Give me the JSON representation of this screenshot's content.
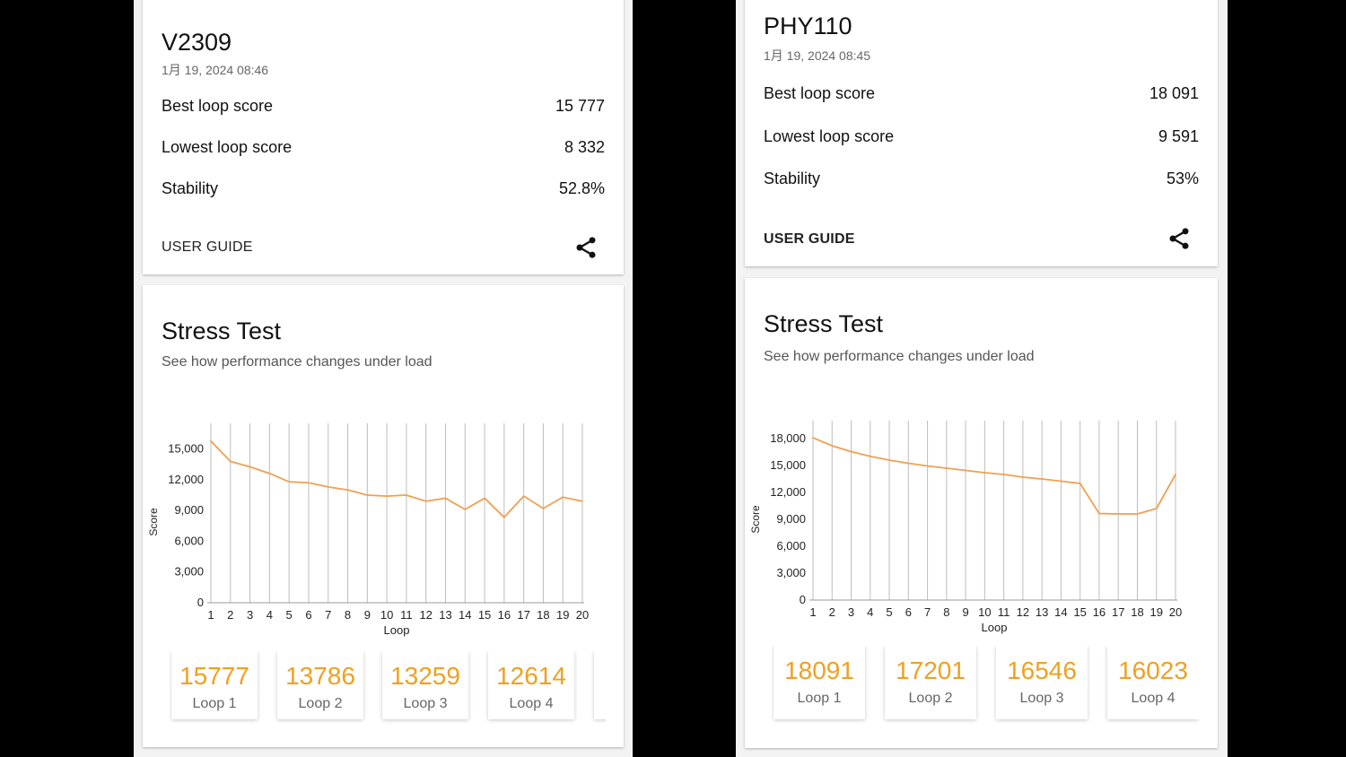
{
  "screens": [
    {
      "device": "V2309",
      "date": "1月 19, 2024 08:46",
      "rows": [
        {
          "label": "Best loop score",
          "value": "15 777"
        },
        {
          "label": "Lowest loop score",
          "value": "8 332"
        },
        {
          "label": "Stability",
          "value": "52.8%"
        }
      ],
      "user_guide": "USER GUIDE",
      "share_icon": "share-icon",
      "stress_title": "Stress Test",
      "stress_subtitle": "See how performance changes under load",
      "loop_tiles": [
        {
          "score": "15777",
          "label": "Loop 1"
        },
        {
          "score": "13786",
          "label": "Loop 2"
        },
        {
          "score": "13259",
          "label": "Loop 3"
        },
        {
          "score": "12614",
          "label": "Loop 4"
        }
      ]
    },
    {
      "device": "PHY110",
      "date": "1月 19, 2024 08:45",
      "rows": [
        {
          "label": "Best loop score",
          "value": "18 091"
        },
        {
          "label": "Lowest loop score",
          "value": "9 591"
        },
        {
          "label": "Stability",
          "value": "53%"
        }
      ],
      "user_guide": "USER GUIDE",
      "share_icon": "share-icon",
      "stress_title": "Stress Test",
      "stress_subtitle": "See how performance changes under load",
      "loop_tiles": [
        {
          "score": "18091",
          "label": "Loop 1"
        },
        {
          "score": "17201",
          "label": "Loop 2"
        },
        {
          "score": "16546",
          "label": "Loop 3"
        },
        {
          "score": "16023",
          "label": "Loop 4"
        }
      ]
    }
  ],
  "colors": {
    "line": "#f0a050",
    "tile_number": "#f0a020",
    "grid": "#bdbdbd"
  },
  "chart_data": [
    {
      "type": "line",
      "xlabel": "Loop",
      "ylabel": "Score",
      "x": [
        1,
        2,
        3,
        4,
        5,
        6,
        7,
        8,
        9,
        10,
        11,
        12,
        13,
        14,
        15,
        16,
        17,
        18,
        19,
        20
      ],
      "y_ticks": [
        0,
        3000,
        6000,
        9000,
        12000,
        15000
      ],
      "y_tick_labels": [
        "0",
        "3,000",
        "6,000",
        "9,000",
        "12,000",
        "15,000"
      ],
      "ylim": [
        0,
        17500
      ],
      "grid": "vertical",
      "series": [
        {
          "values": [
            15777,
            13786,
            13259,
            12614,
            11800,
            11700,
            11300,
            11000,
            10500,
            10400,
            10500,
            9900,
            10200,
            9100,
            10200,
            8332,
            10400,
            9200,
            10300,
            9900
          ]
        }
      ]
    },
    {
      "type": "line",
      "xlabel": "Loop",
      "ylabel": "Score",
      "x": [
        1,
        2,
        3,
        4,
        5,
        6,
        7,
        8,
        9,
        10,
        11,
        12,
        13,
        14,
        15,
        16,
        17,
        18,
        19,
        20
      ],
      "y_ticks": [
        0,
        3000,
        6000,
        9000,
        12000,
        15000,
        18000
      ],
      "y_tick_labels": [
        "0",
        "3,000",
        "6,000",
        "9,000",
        "12,000",
        "15,000",
        "18,000"
      ],
      "ylim": [
        0,
        20000
      ],
      "grid": "vertical",
      "series": [
        {
          "values": [
            18091,
            17201,
            16546,
            16023,
            15600,
            15250,
            14950,
            14700,
            14450,
            14200,
            14000,
            13700,
            13500,
            13250,
            13000,
            9650,
            9600,
            9600,
            10200,
            14000
          ]
        }
      ]
    }
  ]
}
